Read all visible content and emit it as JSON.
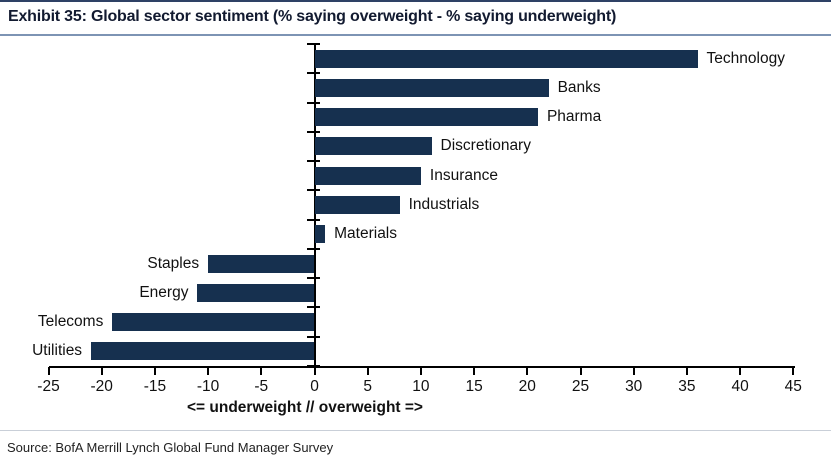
{
  "header": {
    "title": "Exhibit 35: Global sector sentiment (% saying overweight - % saying underweight)"
  },
  "chart_data": {
    "type": "bar",
    "orientation": "horizontal",
    "title": "Exhibit 35: Global sector sentiment (% saying overweight - % saying underweight)",
    "categories": [
      "Technology",
      "Banks",
      "Pharma",
      "Discretionary",
      "Insurance",
      "Industrials",
      "Materials",
      "Staples",
      "Energy",
      "Telecoms",
      "Utilities"
    ],
    "values": [
      36,
      22,
      21,
      11,
      10,
      8,
      1,
      -10,
      -11,
      -19,
      -21
    ],
    "xlabel": "<= underweight // overweight =>",
    "ylabel": "",
    "xlim": [
      -25,
      45
    ],
    "xticks": [
      -25,
      -20,
      -15,
      -10,
      -5,
      0,
      5,
      10,
      15,
      20,
      25,
      30,
      35,
      40,
      45
    ],
    "grid": false,
    "legend_position": "none",
    "bar_color": "#16304f",
    "label_placement": "outside-end"
  },
  "footer": {
    "source": "Source: BofA Merrill Lynch Global Fund Manager Survey"
  }
}
